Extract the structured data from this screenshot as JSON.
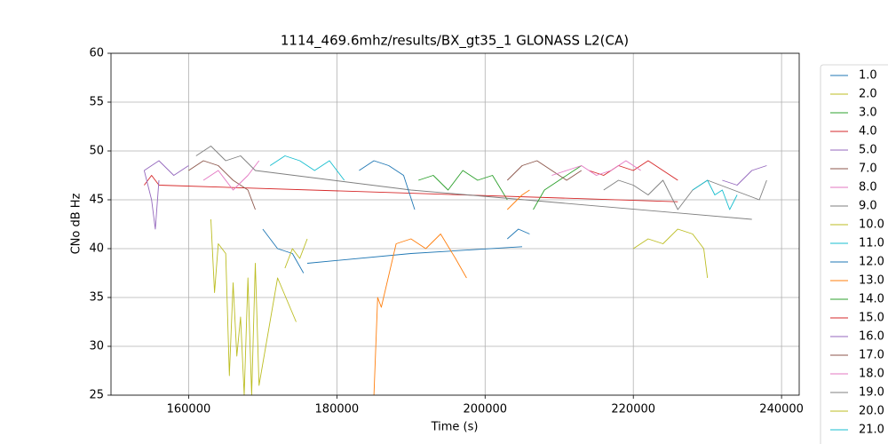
{
  "chart_data": {
    "type": "line",
    "title": "1114_469.6mhz/results/BX_gt35_1 GLONASS L2(CA)",
    "x_label": "Time (s)",
    "y_label": "CNo dB Hz",
    "xlim": [
      149524,
      242381
    ],
    "ylim": [
      25,
      60
    ],
    "xticks": [
      160000,
      180000,
      200000,
      220000,
      240000
    ],
    "yticks": [
      25,
      30,
      35,
      40,
      45,
      50,
      55,
      60
    ],
    "grid": true,
    "legend": "outside right",
    "series": [
      {
        "name": "1.0",
        "color": "#1f77b4",
        "x": [
          176000,
          190000,
          205000
        ],
        "values": [
          38.5,
          39.5,
          40.2
        ]
      },
      {
        "name": "2.0",
        "color": "#bcbd22",
        "x": [
          163000,
          163500,
          164000,
          165000,
          165500,
          166000,
          166500,
          167000,
          167500,
          168000,
          168500,
          169000,
          169500,
          172000,
          174500
        ],
        "values": [
          43,
          35.5,
          40.5,
          39.5,
          27,
          36.5,
          29,
          33,
          25,
          37,
          25,
          38.5,
          26,
          37,
          32.5
        ]
      },
      {
        "name": "3.0",
        "color": "#2ca02c",
        "x": [
          191000,
          193000,
          195000,
          197000,
          199000,
          201000,
          203000
        ],
        "values": [
          47,
          47.5,
          46,
          48,
          47,
          47.5,
          45
        ]
      },
      {
        "name": "4.0",
        "color": "#d62728",
        "x": [
          154000,
          155000,
          156000,
          226000
        ],
        "values": [
          46.5,
          47.5,
          46.5,
          44.8
        ]
      },
      {
        "name": "5.0",
        "color": "#9467bd",
        "x": [
          154000,
          156000,
          158000,
          160000
        ],
        "values": [
          48,
          49,
          47.5,
          48.5
        ]
      },
      {
        "name": "7.0",
        "color": "#8c564b",
        "x": [
          160000,
          162000,
          164000,
          166000,
          168000,
          169000
        ],
        "values": [
          48,
          49,
          48.5,
          47,
          46,
          44
        ]
      },
      {
        "name": "8.0",
        "color": "#e377c2",
        "x": [
          162000,
          164000,
          166000,
          168000,
          169500
        ],
        "values": [
          47,
          48,
          46,
          47.5,
          49
        ]
      },
      {
        "name": "9.0",
        "color": "#7f7f7f",
        "x": [
          161000,
          163000,
          165000,
          167000,
          169000,
          190000,
          236000
        ],
        "values": [
          49.5,
          50.5,
          49,
          49.5,
          48,
          46,
          43
        ]
      },
      {
        "name": "10.0",
        "color": "#bcbd22",
        "x": [
          220000,
          222000,
          224000,
          226000,
          228000,
          229500,
          230000
        ],
        "values": [
          40,
          41,
          40.5,
          42,
          41.5,
          40,
          37
        ]
      },
      {
        "name": "11.0",
        "color": "#17becf",
        "x": [
          171000,
          173000,
          175000,
          177000,
          179000,
          181000
        ],
        "values": [
          48.5,
          49.5,
          49,
          48,
          49,
          47
        ]
      },
      {
        "name": "12.0",
        "color": "#1f77b4",
        "x": [
          170000,
          172000,
          174000,
          175500,
          179000,
          183000,
          185000,
          187000,
          189000,
          190500,
          197000,
          203000,
          204500,
          206000
        ],
        "values": [
          42,
          40,
          39.5,
          37.5,
          null,
          48,
          49,
          48.5,
          47.5,
          44,
          null,
          41,
          42,
          41.5
        ]
      },
      {
        "name": "13.0",
        "color": "#ff7f0e",
        "x": [
          185000,
          185500,
          186000,
          188000,
          190000,
          192000,
          194000,
          196000,
          197500,
          200000,
          203000,
          205000,
          206000
        ],
        "values": [
          25,
          35,
          34,
          40.5,
          41,
          40,
          41.5,
          39,
          37,
          null,
          44,
          45.5,
          46
        ]
      },
      {
        "name": "14.0",
        "color": "#2ca02c",
        "x": [
          206500,
          208000,
          210000,
          212000,
          213000
        ],
        "values": [
          44,
          46,
          47,
          48,
          48.5
        ]
      },
      {
        "name": "15.0",
        "color": "#d62728",
        "x": [
          214000,
          216000,
          218000,
          220000,
          222000,
          224000,
          226000
        ],
        "values": [
          48,
          47.5,
          48.5,
          48,
          49,
          48,
          47
        ]
      },
      {
        "name": "16.0",
        "color": "#9467bd",
        "x": [
          154000,
          155000,
          155500,
          156000,
          200000,
          232000,
          234000,
          236000,
          238000
        ],
        "values": [
          48,
          45,
          42,
          47,
          null,
          47,
          46.5,
          48,
          48.5
        ]
      },
      {
        "name": "17.0",
        "color": "#8c564b",
        "x": [
          203000,
          205000,
          207000,
          209000,
          211000,
          213000
        ],
        "values": [
          47,
          48.5,
          49,
          48,
          47,
          48
        ]
      },
      {
        "name": "18.0",
        "color": "#e377c2",
        "x": [
          209000,
          211000,
          213000,
          215000,
          217000,
          219000,
          221000
        ],
        "values": [
          47.5,
          48,
          48.5,
          47.5,
          48,
          49,
          48
        ]
      },
      {
        "name": "19.0",
        "color": "#7f7f7f",
        "x": [
          216000,
          218000,
          220000,
          222000,
          224000,
          226000,
          228000,
          230000,
          237000,
          238000
        ],
        "values": [
          46,
          47,
          46.5,
          45.5,
          47,
          44,
          46,
          47,
          45,
          47
        ]
      },
      {
        "name": "20.0",
        "color": "#bcbd22",
        "x": [
          173000,
          174000,
          175000,
          176000
        ],
        "values": [
          38,
          40,
          39,
          41
        ]
      },
      {
        "name": "21.0",
        "color": "#17becf",
        "x": [
          228000,
          230000,
          231000,
          232000,
          233000,
          234000
        ],
        "values": [
          46,
          47,
          45.5,
          46,
          44,
          45.5
        ]
      }
    ]
  }
}
